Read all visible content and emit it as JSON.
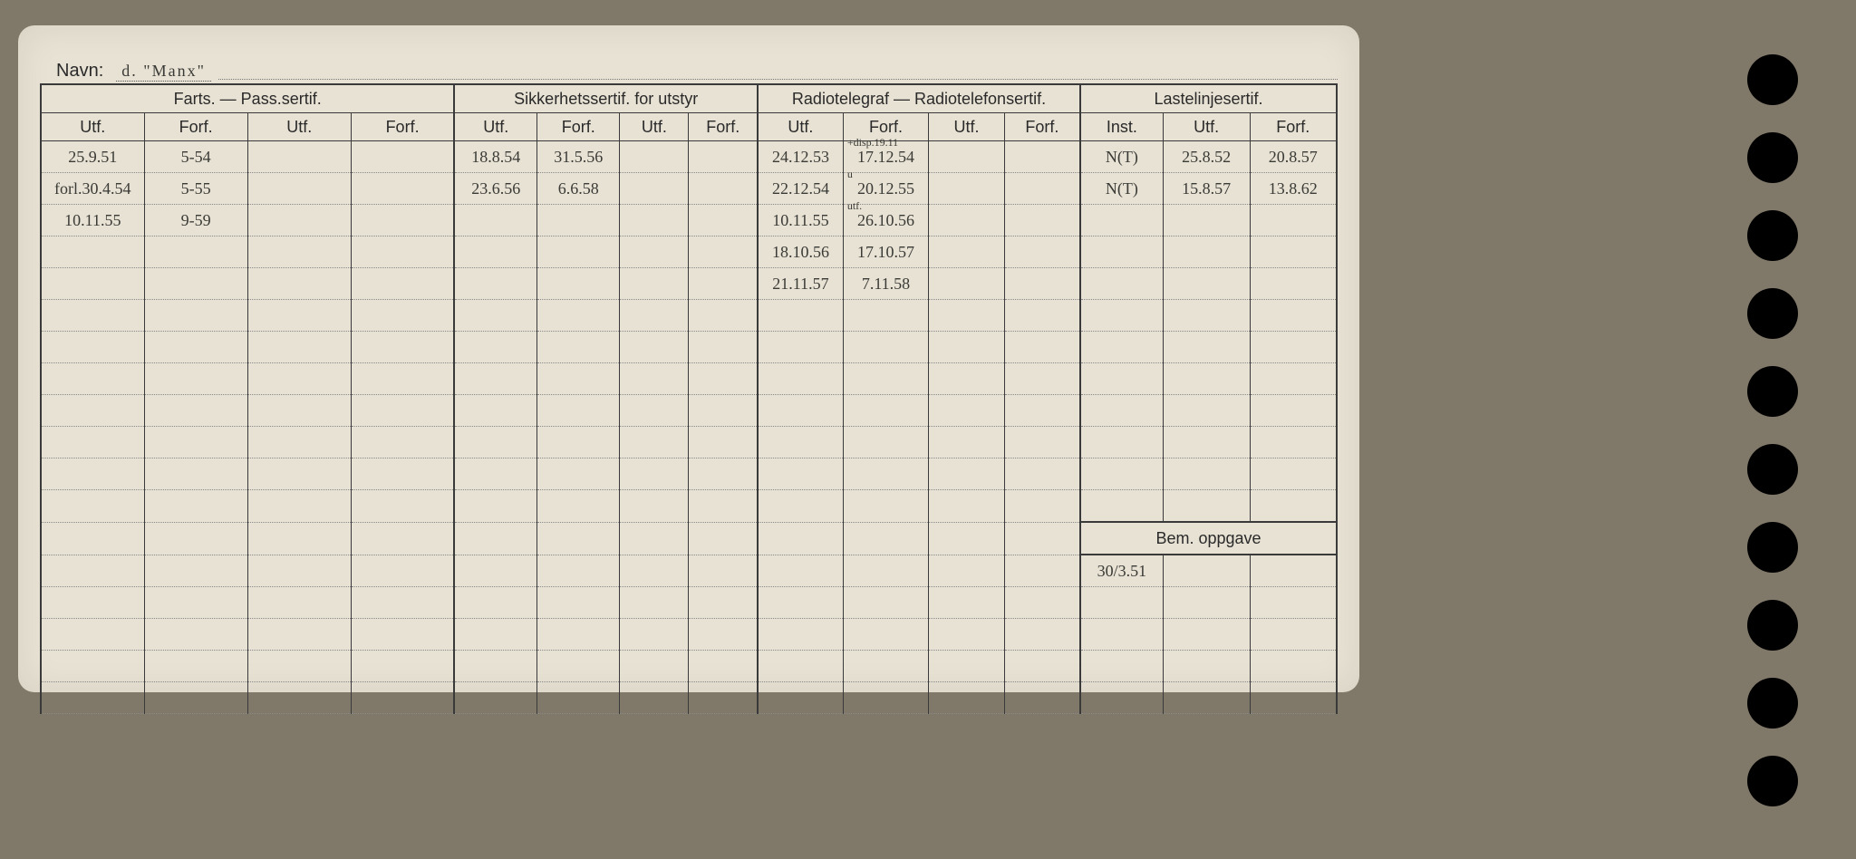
{
  "card": {
    "navn_label": "Navn:",
    "navn_value": "d.  \"Manx\"",
    "background_color": "#e8e2d4",
    "line_color": "#3a3a3a",
    "dotted_color": "#888888",
    "handwriting_color": "#3a3a36",
    "printed_color": "#2a2a2a"
  },
  "sections": {
    "farts": "Farts. — Pass.sertif.",
    "sikker": "Sikkerhetssertif. for utstyr",
    "radio": "Radiotelegraf — Radiotelefonsertif.",
    "laste": "Lastelinjesertif."
  },
  "subheaders": {
    "utf": "Utf.",
    "forf": "Forf.",
    "inst": "Inst."
  },
  "bem": {
    "label": "Bem. oppgave",
    "value": "30/3.51"
  },
  "rows": [
    {
      "farts_utf1": "25.9.51",
      "farts_forf1": "5-54",
      "farts_utf2": "",
      "farts_forf2": "",
      "sik_utf1": "18.8.54",
      "sik_forf1": "31.5.56",
      "sik_utf2": "",
      "sik_forf2": "",
      "rad_utf1": "24.12.53",
      "rad_forf1": "17.12.54",
      "rad_note": "+disp.19.11",
      "rad_utf2": "",
      "rad_forf2": "",
      "las_inst": "N(T)",
      "las_utf": "25.8.52",
      "las_forf": "20.8.57"
    },
    {
      "farts_utf1": "forl.30.4.54",
      "farts_forf1": "5-55",
      "farts_utf2": "",
      "farts_forf2": "",
      "sik_utf1": "23.6.56",
      "sik_forf1": "6.6.58",
      "sik_utf2": "",
      "sik_forf2": "",
      "rad_utf1": "22.12.54",
      "rad_forf1": "20.12.55",
      "rad_note": "u",
      "rad_utf2": "",
      "rad_forf2": "",
      "las_inst": "N(T)",
      "las_utf": "15.8.57",
      "las_forf": "13.8.62"
    },
    {
      "farts_utf1": "10.11.55",
      "farts_forf1": "9-59",
      "farts_utf2": "",
      "farts_forf2": "",
      "sik_utf1": "",
      "sik_forf1": "",
      "sik_utf2": "",
      "sik_forf2": "",
      "rad_utf1": "10.11.55",
      "rad_forf1": "26.10.56",
      "rad_note": "utf.",
      "rad_utf2": "",
      "rad_forf2": "",
      "las_inst": "",
      "las_utf": "",
      "las_forf": ""
    },
    {
      "farts_utf1": "",
      "farts_forf1": "",
      "farts_utf2": "",
      "farts_forf2": "",
      "sik_utf1": "",
      "sik_forf1": "",
      "sik_utf2": "",
      "sik_forf2": "",
      "rad_utf1": "18.10.56",
      "rad_forf1": "17.10.57",
      "rad_utf2": "",
      "rad_forf2": "",
      "las_inst": "",
      "las_utf": "",
      "las_forf": ""
    },
    {
      "farts_utf1": "",
      "farts_forf1": "",
      "farts_utf2": "",
      "farts_forf2": "",
      "sik_utf1": "",
      "sik_forf1": "",
      "sik_utf2": "",
      "sik_forf2": "",
      "rad_utf1": "21.11.57",
      "rad_forf1": "7.11.58",
      "rad_utf2": "",
      "rad_forf2": "",
      "las_inst": "",
      "las_utf": "",
      "las_forf": ""
    }
  ],
  "layout": {
    "total_rows": 18,
    "bem_row_index": 12,
    "holes_count": 10
  }
}
